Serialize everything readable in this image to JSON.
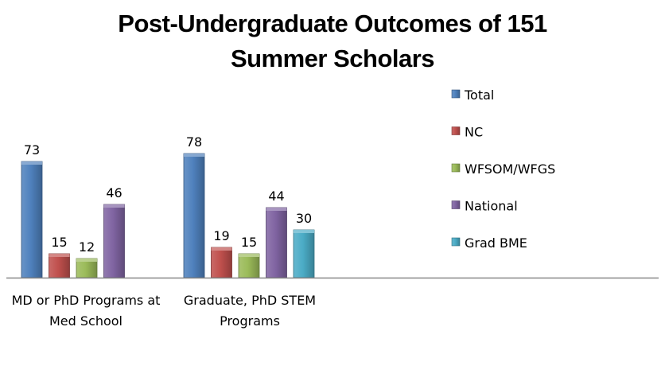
{
  "chart_data": {
    "type": "bar",
    "title": [
      "Post-Undergraduate Outcomes of 151",
      "Summer Scholars"
    ],
    "categories": [
      [
        "MD or PhD Programs at",
        "Med School"
      ],
      [
        "Graduate, PhD STEM",
        "Programs"
      ]
    ],
    "series": [
      {
        "name": "Total",
        "color": "#4f81bd",
        "values": [
          73,
          78
        ]
      },
      {
        "name": "NC",
        "color": "#c0504d",
        "values": [
          15,
          19
        ]
      },
      {
        "name": "WFSOM/WFGS",
        "color": "#9bbb59",
        "values": [
          12,
          15
        ]
      },
      {
        "name": "National",
        "color": "#8064a2",
        "values": [
          46,
          44
        ]
      },
      {
        "name": "Grad BME",
        "color": "#4bacc6",
        "values": [
          null,
          30
        ]
      }
    ],
    "ylim": [
      0,
      80
    ],
    "legend_position": "right",
    "grid": false,
    "data_labels": true,
    "xlabel": "",
    "ylabel": ""
  }
}
